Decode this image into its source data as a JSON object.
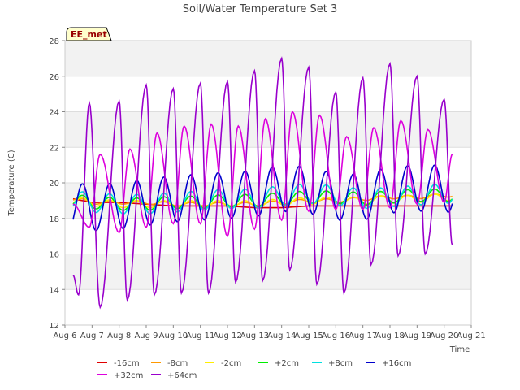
{
  "chart_data": {
    "type": "line",
    "title": "Soil/Water Temperature Set 3",
    "xlabel": "Time",
    "ylabel": "Temperature (C)",
    "xlim": [
      0,
      15
    ],
    "ylim": [
      12,
      28
    ],
    "x_tick_labels": [
      "Aug 6",
      "Aug 7",
      "Aug 8",
      "Aug 9",
      "Aug 10",
      "Aug 11",
      "Aug 12",
      "Aug 13",
      "Aug 14",
      "Aug 15",
      "Aug 16",
      "Aug 17",
      "Aug 18",
      "Aug 19",
      "Aug 20",
      "Aug 21"
    ],
    "y_ticks": [
      12,
      14,
      16,
      18,
      20,
      22,
      24,
      26,
      28
    ],
    "station_label": "EE_met",
    "grid": "horizontal bands",
    "legend_position": "bottom",
    "x_unit_note": "x = days after Aug 6 00:00",
    "series": [
      {
        "name": "-16cm",
        "color": "#e00000",
        "x": [
          0.3,
          1,
          2,
          3,
          4,
          5,
          6,
          7,
          8,
          9,
          10,
          11,
          12,
          13,
          14,
          14.3
        ],
        "y": [
          19.1,
          18.9,
          18.9,
          18.8,
          18.7,
          18.7,
          18.7,
          18.6,
          18.6,
          18.7,
          18.7,
          18.7,
          18.7,
          18.7,
          18.7,
          18.7
        ]
      },
      {
        "name": "-8cm",
        "color": "#ff9900",
        "x": [
          0.3,
          1,
          2,
          3,
          4,
          5,
          6,
          7,
          8,
          9,
          10,
          11,
          12,
          13,
          14,
          14.3
        ],
        "y": [
          19.1,
          18.9,
          18.9,
          18.9,
          18.8,
          18.8,
          18.8,
          18.8,
          18.9,
          19.0,
          19.0,
          19.1,
          19.2,
          19.2,
          19.3,
          19.3
        ],
        "amplitude": 0.1
      },
      {
        "name": "-2cm",
        "color": "#ffee00",
        "x": [
          0.3,
          1,
          2,
          3,
          4,
          5,
          6,
          7,
          8,
          9,
          10,
          11,
          12,
          13,
          14,
          14.3
        ],
        "y": [
          19.0,
          18.9,
          18.8,
          18.8,
          18.8,
          18.8,
          18.8,
          18.8,
          18.9,
          19.0,
          19.0,
          19.0,
          19.1,
          19.1,
          19.2,
          19.2
        ],
        "amplitude": 0.2
      },
      {
        "name": "+2cm",
        "color": "#00ee00",
        "x": [
          0.3,
          1,
          2,
          3,
          4,
          5,
          6,
          7,
          8,
          9,
          10,
          11,
          12,
          13,
          14,
          14.3
        ],
        "y": [
          19.0,
          18.9,
          18.8,
          18.8,
          18.9,
          18.9,
          19.0,
          19.0,
          19.1,
          19.2,
          19.2,
          19.1,
          19.2,
          19.3,
          19.3,
          19.3
        ],
        "amplitude": 0.35
      },
      {
        "name": "+8cm",
        "color": "#00e0e0",
        "x": [
          0.3,
          1,
          2,
          3,
          4,
          5,
          6,
          7,
          8,
          9,
          10,
          11,
          12,
          13,
          14,
          14.3
        ],
        "y": [
          19.0,
          18.9,
          18.8,
          18.8,
          18.9,
          19.0,
          19.1,
          19.1,
          19.3,
          19.4,
          19.3,
          19.1,
          19.2,
          19.3,
          19.4,
          19.4
        ],
        "amplitude": 0.55
      },
      {
        "name": "+16cm",
        "color": "#0000cc",
        "x": [
          0.3,
          1,
          2,
          3,
          4,
          5,
          6,
          7,
          8,
          9,
          10,
          11,
          12,
          13,
          14,
          14.3
        ],
        "y": [
          18.7,
          18.6,
          18.7,
          18.9,
          19.1,
          19.2,
          19.3,
          19.4,
          19.7,
          19.6,
          19.2,
          19.2,
          19.6,
          19.7,
          19.7,
          19.6
        ],
        "amplitude": 1.3
      },
      {
        "name": "+32cm",
        "color": "#dd00dd",
        "x": [
          0.3,
          0.9,
          1.3,
          2,
          2.4,
          3,
          3.4,
          4,
          4.4,
          5,
          5.4,
          6,
          6.4,
          7,
          7.4,
          8,
          8.4,
          9,
          9.4,
          10,
          10.4,
          11,
          11.4,
          12,
          12.4,
          13,
          13.4,
          14,
          14.3
        ],
        "y": [
          18.8,
          17.5,
          21.6,
          17.2,
          21.9,
          17.5,
          22.8,
          17.7,
          23.2,
          17.7,
          23.3,
          17.0,
          23.2,
          17.4,
          23.6,
          17.9,
          24.0,
          18.4,
          23.8,
          18.5,
          22.6,
          18.5,
          23.1,
          18.6,
          23.5,
          18.8,
          23.0,
          18.9,
          21.6
        ]
      },
      {
        "name": "+64cm",
        "color": "#9900cc",
        "x": [
          0.3,
          0.5,
          0.9,
          1.3,
          2,
          2.3,
          3,
          3.3,
          4,
          4.3,
          5,
          5.3,
          6,
          6.3,
          7,
          7.3,
          8,
          8.3,
          9,
          9.3,
          10,
          10.3,
          11,
          11.3,
          12,
          12.3,
          13,
          13.3,
          14,
          14.3
        ],
        "y": [
          14.8,
          13.7,
          24.5,
          13.0,
          24.6,
          13.4,
          25.5,
          13.7,
          25.3,
          13.8,
          25.6,
          13.8,
          25.7,
          14.4,
          26.3,
          14.5,
          27.0,
          15.1,
          26.5,
          14.3,
          25.1,
          13.8,
          25.9,
          15.4,
          26.7,
          15.9,
          26.0,
          16.0,
          24.7,
          16.5
        ]
      }
    ]
  }
}
